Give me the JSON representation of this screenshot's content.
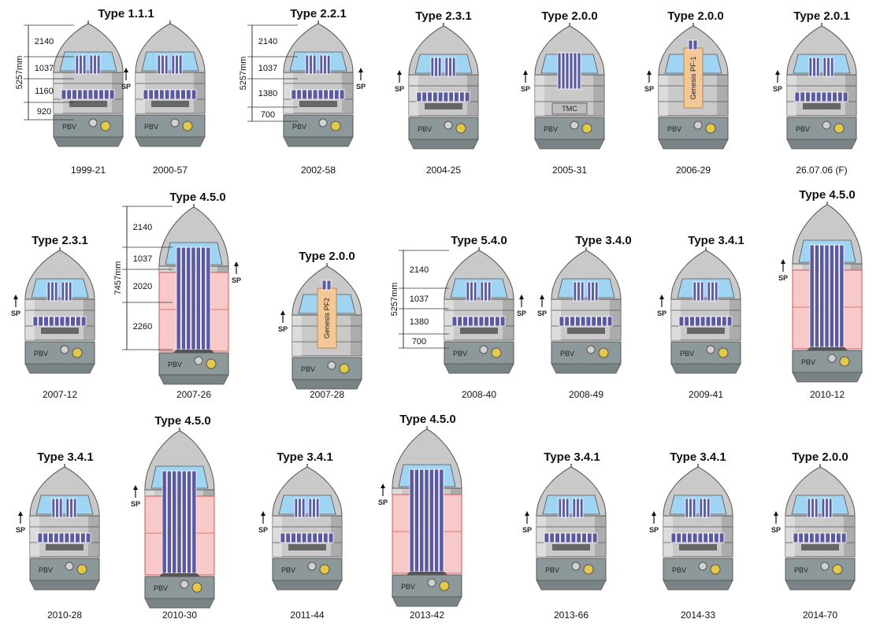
{
  "common": {
    "pbv_label": "PBV",
    "sp_label": "SP",
    "tmc_label": "TMC",
    "colors": {
      "fairing": "#c9c9c9",
      "window": "#9fd4f2",
      "panel": "#5b5aa0",
      "pbv": "#8d989b",
      "adapter": "#f7c9c9",
      "genesis": "#f3c796"
    }
  },
  "fairings": [
    {
      "type": "Type 1.1.1",
      "caption": "1999-21",
      "variant": "short"
    },
    {
      "type": "",
      "caption": "2000-57",
      "variant": "short"
    },
    {
      "type": "Type 2.2.1",
      "caption": "2002-58",
      "variant": "short"
    },
    {
      "type": "Type 2.3.1",
      "caption": "2004-25",
      "variant": "short"
    },
    {
      "type": "Type 2.0.0",
      "caption": "2005-31",
      "variant": "short",
      "label": "TMC"
    },
    {
      "type": "Type 2.0.0",
      "caption": "2006-29",
      "variant": "short",
      "label": "Genesis PF-1"
    },
    {
      "type": "Type 2.0.1",
      "caption": "26.07.06 (F)",
      "variant": "short"
    },
    {
      "type": "Type 2.3.1",
      "caption": "2007-12",
      "variant": "short"
    },
    {
      "type": "Type 4.5.0",
      "caption": "2007-26",
      "variant": "long"
    },
    {
      "type": "Type 2.0.0",
      "caption": "2007-28",
      "variant": "short",
      "label": "Genesis PF2"
    },
    {
      "type": "Type 5.4.0",
      "caption": "2008-40",
      "variant": "short"
    },
    {
      "type": "Type 3.4.0",
      "caption": "2008-49",
      "variant": "short"
    },
    {
      "type": "Type 3.4.1",
      "caption": "2009-41",
      "variant": "short"
    },
    {
      "type": "Type 4.5.0",
      "caption": "2010-12",
      "variant": "long"
    },
    {
      "type": "Type 3.4.1",
      "caption": "2010-28",
      "variant": "short"
    },
    {
      "type": "Type 4.5.0",
      "caption": "2010-30",
      "variant": "long"
    },
    {
      "type": "Type 3.4.1",
      "caption": "2011-44",
      "variant": "short"
    },
    {
      "type": "Type 4.5.0",
      "caption": "2013-42",
      "variant": "long"
    },
    {
      "type": "Type 3.4.1",
      "caption": "2013-66",
      "variant": "short"
    },
    {
      "type": "Type 3.4.1",
      "caption": "2014-33",
      "variant": "short"
    },
    {
      "type": "Type 2.0.0",
      "caption": "2014-70",
      "variant": "short"
    }
  ],
  "dimensions": [
    {
      "total": "5257mm",
      "segments": [
        "2140",
        "1037",
        "1160",
        "920"
      ]
    },
    {
      "total": "5257mm",
      "segments": [
        "2140",
        "1037",
        "1380",
        "700"
      ]
    },
    {
      "total": "7457mm",
      "segments": [
        "2140",
        "1037",
        "2020",
        "2260"
      ]
    },
    {
      "total": "5257mm",
      "segments": [
        "2140",
        "1037",
        "1380",
        "700"
      ]
    }
  ]
}
